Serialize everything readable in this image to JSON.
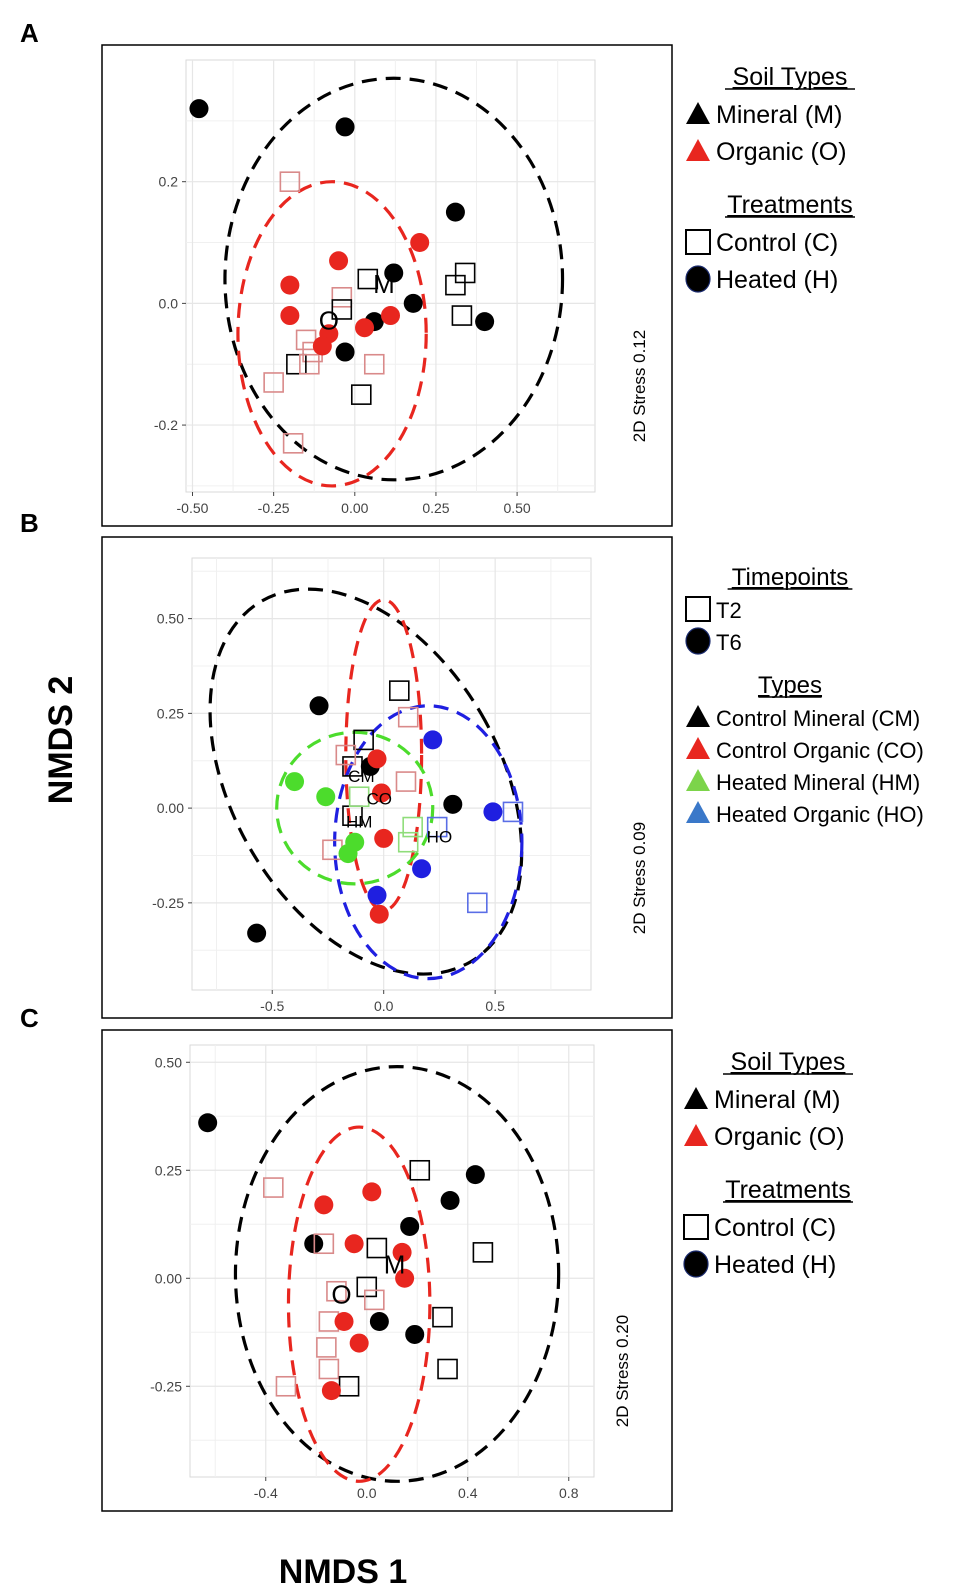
{
  "figure": {
    "xlabel": "NMDS 1",
    "ylabel": "NMDS 2"
  },
  "colors": {
    "black": "#000000",
    "red": "#e8261f",
    "green": "#4cdc2c",
    "blue": "#1f1fe0",
    "blue_legend": "#3a78c9",
    "green_legend": "#7cd44a",
    "grid": "#e6e6e6",
    "sq_red": "#d98a8a",
    "sq_green": "#8fdd7a",
    "sq_blue": "#5a6ee6"
  },
  "chart_data": [
    {
      "panel": "A",
      "type": "scatter",
      "xlim": [
        -0.52,
        0.74
      ],
      "ylim": [
        -0.31,
        0.4
      ],
      "xticks": [
        -0.5,
        -0.25,
        0,
        0.25,
        0.5
      ],
      "xtick_labels": [
        "-0.50",
        "-0.25",
        "0.00",
        "0.25",
        "0.50"
      ],
      "yticks": [
        -0.2,
        0,
        0.2
      ],
      "ytick_labels": [
        "-0.2",
        "0.0",
        "0.2"
      ],
      "stress": "2D Stress 0.12",
      "ellipses": [
        {
          "color": "black",
          "cx": 0.12,
          "cy": 0.04,
          "rx": 0.52,
          "ry": 0.33
        },
        {
          "color": "red",
          "cx": -0.07,
          "cy": -0.05,
          "rx": 0.29,
          "ry": 0.25
        }
      ],
      "centroids": [
        {
          "label": "M",
          "x": 0.09,
          "y": 0.03
        },
        {
          "label": "O",
          "x": -0.08,
          "y": -0.03
        }
      ],
      "points": [
        {
          "x": -0.48,
          "y": 0.32,
          "shape": "circle",
          "color": "black"
        },
        {
          "x": -0.03,
          "y": 0.29,
          "shape": "circle",
          "color": "black"
        },
        {
          "x": 0.31,
          "y": 0.15,
          "shape": "circle",
          "color": "black"
        },
        {
          "x": 0.12,
          "y": 0.05,
          "shape": "circle",
          "color": "black"
        },
        {
          "x": 0.18,
          "y": 0.0,
          "shape": "circle",
          "color": "black"
        },
        {
          "x": 0.06,
          "y": -0.03,
          "shape": "circle",
          "color": "black"
        },
        {
          "x": 0.4,
          "y": -0.03,
          "shape": "circle",
          "color": "black"
        },
        {
          "x": -0.03,
          "y": -0.08,
          "shape": "circle",
          "color": "black"
        },
        {
          "x": -0.2,
          "y": 0.2,
          "shape": "square",
          "color": "sq_red"
        },
        {
          "x": 0.04,
          "y": 0.04,
          "shape": "square",
          "color": "black"
        },
        {
          "x": 0.34,
          "y": 0.05,
          "shape": "square",
          "color": "black"
        },
        {
          "x": 0.31,
          "y": 0.03,
          "shape": "square",
          "color": "black"
        },
        {
          "x": -0.04,
          "y": 0.01,
          "shape": "square",
          "color": "sq_red"
        },
        {
          "x": -0.04,
          "y": -0.01,
          "shape": "square",
          "color": "black"
        },
        {
          "x": 0.33,
          "y": -0.02,
          "shape": "square",
          "color": "black"
        },
        {
          "x": -0.15,
          "y": -0.06,
          "shape": "square",
          "color": "sq_red"
        },
        {
          "x": -0.13,
          "y": -0.08,
          "shape": "square",
          "color": "sq_red"
        },
        {
          "x": -0.18,
          "y": -0.1,
          "shape": "square",
          "color": "black"
        },
        {
          "x": -0.14,
          "y": -0.1,
          "shape": "square",
          "color": "sq_red"
        },
        {
          "x": 0.06,
          "y": -0.1,
          "shape": "square",
          "color": "sq_red"
        },
        {
          "x": -0.25,
          "y": -0.13,
          "shape": "square",
          "color": "sq_red"
        },
        {
          "x": 0.02,
          "y": -0.15,
          "shape": "square",
          "color": "black"
        },
        {
          "x": -0.19,
          "y": -0.23,
          "shape": "square",
          "color": "sq_red"
        },
        {
          "x": -0.05,
          "y": 0.07,
          "shape": "circle",
          "color": "red"
        },
        {
          "x": 0.2,
          "y": 0.1,
          "shape": "circle",
          "color": "red"
        },
        {
          "x": -0.2,
          "y": 0.03,
          "shape": "circle",
          "color": "red"
        },
        {
          "x": -0.2,
          "y": -0.02,
          "shape": "circle",
          "color": "red"
        },
        {
          "x": -0.08,
          "y": -0.05,
          "shape": "circle",
          "color": "red"
        },
        {
          "x": -0.1,
          "y": -0.07,
          "shape": "circle",
          "color": "red"
        },
        {
          "x": 0.03,
          "y": -0.04,
          "shape": "circle",
          "color": "red"
        },
        {
          "x": 0.11,
          "y": -0.02,
          "shape": "circle",
          "color": "red"
        }
      ]
    },
    {
      "panel": "B",
      "type": "scatter",
      "xlim": [
        -0.86,
        0.93
      ],
      "ylim": [
        -0.48,
        0.66
      ],
      "xticks": [
        -0.5,
        0,
        0.5
      ],
      "xtick_labels": [
        "-0.5",
        "0.0",
        "0.5"
      ],
      "yticks": [
        -0.25,
        0,
        0.25,
        0.5
      ],
      "ytick_labels": [
        "-0.25",
        "0.00",
        "0.25",
        "0.50"
      ],
      "stress": "2D Stress 0.09",
      "ellipses": [
        {
          "color": "black",
          "cx": -0.08,
          "cy": 0.07,
          "rx": 0.6,
          "ry": 0.55,
          "rot": -30
        },
        {
          "color": "red",
          "cx": 0.0,
          "cy": 0.14,
          "rx": 0.17,
          "ry": 0.41
        },
        {
          "color": "green",
          "cx": -0.13,
          "cy": 0.0,
          "rx": 0.35,
          "ry": 0.2
        },
        {
          "color": "blue",
          "cx": 0.2,
          "cy": -0.09,
          "rx": 0.42,
          "ry": 0.36
        }
      ],
      "centroids": [
        {
          "label": "CM",
          "x": -0.1,
          "y": 0.09
        },
        {
          "label": "CO",
          "x": -0.02,
          "y": 0.03
        },
        {
          "label": "HM",
          "x": -0.11,
          "y": -0.03
        },
        {
          "label": "HO",
          "x": 0.25,
          "y": -0.07
        }
      ],
      "points": [
        {
          "x": -0.29,
          "y": 0.27,
          "shape": "circle",
          "color": "black"
        },
        {
          "x": -0.06,
          "y": 0.11,
          "shape": "circle",
          "color": "black"
        },
        {
          "x": 0.31,
          "y": 0.01,
          "shape": "circle",
          "color": "black"
        },
        {
          "x": -0.57,
          "y": -0.33,
          "shape": "circle",
          "color": "black"
        },
        {
          "x": 0.07,
          "y": 0.31,
          "shape": "square",
          "color": "black"
        },
        {
          "x": -0.09,
          "y": 0.18,
          "shape": "square",
          "color": "black"
        },
        {
          "x": -0.14,
          "y": 0.11,
          "shape": "square",
          "color": "black"
        },
        {
          "x": -0.14,
          "y": -0.02,
          "shape": "square",
          "color": "black"
        },
        {
          "x": 0.11,
          "y": 0.24,
          "shape": "square",
          "color": "sq_red"
        },
        {
          "x": -0.17,
          "y": 0.14,
          "shape": "square",
          "color": "sq_red"
        },
        {
          "x": 0.1,
          "y": 0.07,
          "shape": "square",
          "color": "sq_red"
        },
        {
          "x": -0.23,
          "y": -0.11,
          "shape": "square",
          "color": "sq_red"
        },
        {
          "x": -0.03,
          "y": 0.13,
          "shape": "circle",
          "color": "red"
        },
        {
          "x": -0.01,
          "y": 0.04,
          "shape": "circle",
          "color": "red"
        },
        {
          "x": 0.0,
          "y": -0.08,
          "shape": "circle",
          "color": "red"
        },
        {
          "x": -0.02,
          "y": -0.28,
          "shape": "circle",
          "color": "red"
        },
        {
          "x": -0.4,
          "y": 0.07,
          "shape": "circle",
          "color": "green"
        },
        {
          "x": -0.26,
          "y": 0.03,
          "shape": "circle",
          "color": "green"
        },
        {
          "x": -0.13,
          "y": -0.09,
          "shape": "circle",
          "color": "green"
        },
        {
          "x": -0.16,
          "y": -0.12,
          "shape": "circle",
          "color": "green"
        },
        {
          "x": -0.11,
          "y": 0.03,
          "shape": "square",
          "color": "sq_green"
        },
        {
          "x": 0.13,
          "y": -0.05,
          "shape": "square",
          "color": "sq_green"
        },
        {
          "x": 0.11,
          "y": -0.09,
          "shape": "square",
          "color": "sq_green"
        },
        {
          "x": 0.22,
          "y": 0.18,
          "shape": "circle",
          "color": "blue"
        },
        {
          "x": 0.49,
          "y": -0.01,
          "shape": "circle",
          "color": "blue"
        },
        {
          "x": 0.17,
          "y": -0.16,
          "shape": "circle",
          "color": "blue"
        },
        {
          "x": -0.03,
          "y": -0.23,
          "shape": "circle",
          "color": "blue"
        },
        {
          "x": 0.58,
          "y": -0.01,
          "shape": "square",
          "color": "sq_blue"
        },
        {
          "x": 0.42,
          "y": -0.25,
          "shape": "square",
          "color": "sq_blue"
        },
        {
          "x": 0.24,
          "y": -0.05,
          "shape": "square",
          "color": "sq_blue"
        }
      ]
    },
    {
      "panel": "C",
      "type": "scatter",
      "xlim": [
        -0.7,
        0.9
      ],
      "ylim": [
        -0.46,
        0.54
      ],
      "xticks": [
        -0.4,
        0,
        0.4,
        0.8
      ],
      "xtick_labels": [
        "-0.4",
        "0.0",
        "0.4",
        "0.8"
      ],
      "yticks": [
        -0.25,
        0,
        0.25,
        0.5
      ],
      "ytick_labels": [
        "-0.25",
        "0.00",
        "0.25",
        "0.50"
      ],
      "stress": "2D Stress 0.20",
      "ellipses": [
        {
          "color": "black",
          "cx": 0.12,
          "cy": 0.01,
          "rx": 0.64,
          "ry": 0.48
        },
        {
          "color": "red",
          "cx": -0.03,
          "cy": -0.06,
          "rx": 0.28,
          "ry": 0.41
        }
      ],
      "centroids": [
        {
          "label": "M",
          "x": 0.11,
          "y": 0.03
        },
        {
          "label": "O",
          "x": -0.1,
          "y": -0.04
        }
      ],
      "points": [
        {
          "x": -0.63,
          "y": 0.36,
          "shape": "circle",
          "color": "black"
        },
        {
          "x": 0.43,
          "y": 0.24,
          "shape": "circle",
          "color": "black"
        },
        {
          "x": 0.33,
          "y": 0.18,
          "shape": "circle",
          "color": "black"
        },
        {
          "x": 0.17,
          "y": 0.12,
          "shape": "circle",
          "color": "black"
        },
        {
          "x": -0.21,
          "y": 0.08,
          "shape": "circle",
          "color": "black"
        },
        {
          "x": 0.05,
          "y": -0.1,
          "shape": "circle",
          "color": "black"
        },
        {
          "x": 0.19,
          "y": -0.13,
          "shape": "circle",
          "color": "black"
        },
        {
          "x": -0.37,
          "y": 0.21,
          "shape": "square",
          "color": "sq_red"
        },
        {
          "x": 0.21,
          "y": 0.25,
          "shape": "square",
          "color": "black"
        },
        {
          "x": -0.17,
          "y": 0.08,
          "shape": "square",
          "color": "sq_red"
        },
        {
          "x": 0.04,
          "y": 0.07,
          "shape": "square",
          "color": "black"
        },
        {
          "x": 0.46,
          "y": 0.06,
          "shape": "square",
          "color": "black"
        },
        {
          "x": 0.0,
          "y": -0.02,
          "shape": "square",
          "color": "black"
        },
        {
          "x": -0.12,
          "y": -0.03,
          "shape": "square",
          "color": "sq_red"
        },
        {
          "x": 0.03,
          "y": -0.05,
          "shape": "square",
          "color": "sq_red"
        },
        {
          "x": 0.3,
          "y": -0.09,
          "shape": "square",
          "color": "black"
        },
        {
          "x": -0.15,
          "y": -0.1,
          "shape": "square",
          "color": "sq_red"
        },
        {
          "x": -0.16,
          "y": -0.16,
          "shape": "square",
          "color": "sq_red"
        },
        {
          "x": -0.15,
          "y": -0.21,
          "shape": "square",
          "color": "sq_red"
        },
        {
          "x": 0.32,
          "y": -0.21,
          "shape": "square",
          "color": "black"
        },
        {
          "x": -0.32,
          "y": -0.25,
          "shape": "square",
          "color": "sq_red"
        },
        {
          "x": -0.07,
          "y": -0.25,
          "shape": "square",
          "color": "black"
        },
        {
          "x": -0.17,
          "y": 0.17,
          "shape": "circle",
          "color": "red"
        },
        {
          "x": 0.02,
          "y": 0.2,
          "shape": "circle",
          "color": "red"
        },
        {
          "x": -0.05,
          "y": 0.08,
          "shape": "circle",
          "color": "red"
        },
        {
          "x": 0.14,
          "y": 0.06,
          "shape": "circle",
          "color": "red"
        },
        {
          "x": 0.15,
          "y": 0.0,
          "shape": "circle",
          "color": "red"
        },
        {
          "x": -0.09,
          "y": -0.1,
          "shape": "circle",
          "color": "red"
        },
        {
          "x": -0.03,
          "y": -0.15,
          "shape": "circle",
          "color": "red"
        },
        {
          "x": -0.14,
          "y": -0.26,
          "shape": "circle",
          "color": "red"
        }
      ]
    }
  ],
  "legends": {
    "A": {
      "groups": [
        {
          "title": "Soil Types",
          "items": [
            {
              "label": "Mineral (M)",
              "marker": "triangle",
              "color": "black"
            },
            {
              "label": "Organic (O)",
              "marker": "triangle",
              "color": "red"
            }
          ]
        },
        {
          "title": "Treatments",
          "items": [
            {
              "label": "Control (C)",
              "marker": "square",
              "color": "black"
            },
            {
              "label": "Heated (H)",
              "marker": "circle",
              "color": "black"
            }
          ]
        }
      ]
    },
    "B": {
      "groups": [
        {
          "title": "Timepoints",
          "items": [
            {
              "label": "T2",
              "marker": "square",
              "color": "black"
            },
            {
              "label": "T6",
              "marker": "circle",
              "color": "black"
            }
          ]
        },
        {
          "title": "Types",
          "items": [
            {
              "label": "Control Mineral (CM)",
              "marker": "triangle",
              "color": "black"
            },
            {
              "label": "Control Organic (CO)",
              "marker": "triangle",
              "color": "red"
            },
            {
              "label": "Heated Mineral (HM)",
              "marker": "triangle",
              "color": "green_legend"
            },
            {
              "label": "Heated Organic (HO)",
              "marker": "triangle",
              "color": "blue_legend"
            }
          ]
        }
      ]
    },
    "C": {
      "groups": [
        {
          "title": "Soil Types",
          "items": [
            {
              "label": "Mineral (M)",
              "marker": "triangle",
              "color": "black"
            },
            {
              "label": "Organic (O)",
              "marker": "triangle",
              "color": "red"
            }
          ]
        },
        {
          "title": "Treatments",
          "items": [
            {
              "label": "Control (C)",
              "marker": "square",
              "color": "black"
            },
            {
              "label": "Heated (H)",
              "marker": "circle",
              "color": "black"
            }
          ]
        }
      ]
    }
  }
}
